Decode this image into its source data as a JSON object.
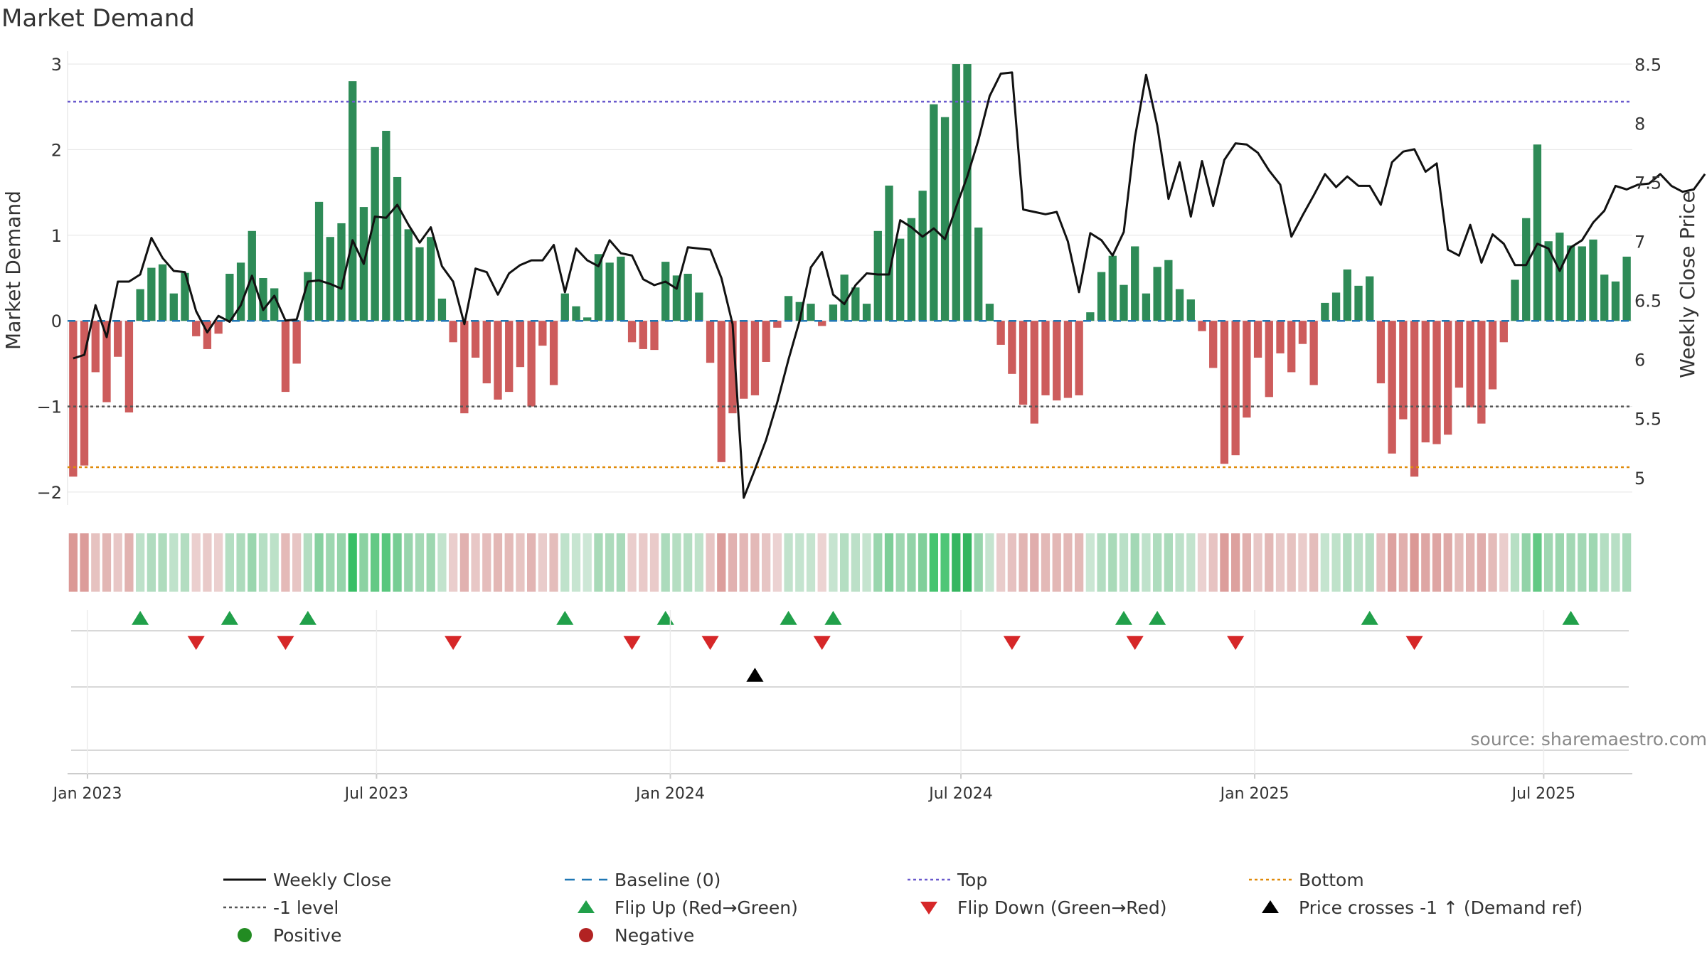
{
  "chart_data": {
    "type": "bar",
    "title": "Market Demand",
    "ylabel": "Market Demand",
    "y2label": "Weekly Close Price",
    "ylim": [
      -2.15,
      3.15
    ],
    "y2lim": [
      4.77,
      8.61
    ],
    "yticks": [
      -2,
      -1,
      0,
      1,
      2,
      3
    ],
    "y2ticks": [
      5,
      5.5,
      6,
      6.5,
      7,
      7.5,
      8,
      8.5
    ],
    "x_start": "2022-12-23",
    "week_step_days": 7,
    "xticks": [
      {
        "label": "Jan 2023",
        "date": "2023-01-01"
      },
      {
        "label": "Jul 2023",
        "date": "2023-07-01"
      },
      {
        "label": "Jan 2024",
        "date": "2024-01-01"
      },
      {
        "label": "Jul 2024",
        "date": "2024-07-01"
      },
      {
        "label": "Jan 2025",
        "date": "2025-01-01"
      },
      {
        "label": "Jul 2025",
        "date": "2025-07-01"
      }
    ],
    "top_level": 2.56,
    "bottom_level": -1.71,
    "minus_one_level": -1,
    "baseline": 0,
    "series": [
      {
        "name": "Market Demand",
        "values": [
          -1.82,
          -1.69,
          -0.6,
          -0.95,
          -0.42,
          -1.07,
          0.37,
          0.62,
          0.66,
          0.32,
          0.56,
          -0.18,
          -0.33,
          -0.15,
          0.55,
          0.68,
          1.05,
          0.5,
          0.38,
          -0.83,
          -0.5,
          0.57,
          1.39,
          0.98,
          1.14,
          2.8,
          1.33,
          2.03,
          2.22,
          1.68,
          1.07,
          0.86,
          0.98,
          0.26,
          -0.25,
          -1.08,
          -0.43,
          -0.73,
          -0.92,
          -0.83,
          -0.54,
          -1.0,
          -0.29,
          -0.75,
          0.32,
          0.17,
          0.04,
          0.78,
          0.68,
          0.75,
          -0.25,
          -0.33,
          -0.34,
          0.69,
          0.53,
          0.55,
          0.33,
          -0.49,
          -1.65,
          -1.08,
          -0.91,
          -0.87,
          -0.48,
          -0.08,
          0.29,
          0.22,
          0.2,
          -0.06,
          0.19,
          0.54,
          0.39,
          0.2,
          1.05,
          1.58,
          0.96,
          1.2,
          1.52,
          2.53,
          2.38,
          3.0,
          3.0,
          1.09,
          0.2,
          -0.28,
          -0.62,
          -0.98,
          -1.2,
          -0.87,
          -0.93,
          -0.9,
          -0.87,
          0.1,
          0.57,
          0.76,
          0.42,
          0.87,
          0.32,
          0.63,
          0.71,
          0.37,
          0.25,
          -0.12,
          -0.55,
          -1.67,
          -1.57,
          -1.13,
          -0.43,
          -0.89,
          -0.38,
          -0.6,
          -0.27,
          -0.75,
          0.21,
          0.33,
          0.6,
          0.41,
          0.52,
          -0.73,
          -1.55,
          -1.15,
          -1.82,
          -1.42,
          -1.44,
          -1.33,
          -0.78,
          -1.01,
          -1.2,
          -0.8,
          -0.25,
          0.48,
          1.2,
          2.06,
          0.93,
          1.03,
          0.88,
          0.87,
          0.95,
          0.54,
          0.46,
          0.75
        ]
      },
      {
        "name": "Weekly Close",
        "values": [
          6.01,
          6.04,
          6.46,
          6.19,
          6.66,
          6.66,
          6.72,
          7.03,
          6.86,
          6.75,
          6.74,
          6.41,
          6.23,
          6.37,
          6.32,
          6.46,
          6.71,
          6.42,
          6.54,
          6.33,
          6.34,
          6.66,
          6.67,
          6.64,
          6.6,
          7.01,
          6.81,
          7.21,
          7.2,
          7.31,
          7.14,
          6.99,
          7.12,
          6.79,
          6.66,
          6.3,
          6.77,
          6.74,
          6.55,
          6.73,
          6.8,
          6.84,
          6.84,
          6.97,
          6.57,
          6.94,
          6.84,
          6.79,
          7.01,
          6.9,
          6.88,
          6.68,
          6.63,
          6.66,
          6.6,
          6.95,
          6.94,
          6.93,
          6.69,
          6.3,
          4.83,
          5.07,
          5.32,
          5.64,
          6.0,
          6.33,
          6.78,
          6.91,
          6.55,
          6.47,
          6.63,
          6.73,
          6.72,
          6.72,
          7.18,
          7.12,
          7.04,
          7.11,
          7.02,
          7.29,
          7.55,
          7.86,
          8.23,
          8.42,
          8.43,
          7.27,
          7.25,
          7.23,
          7.25,
          7.0,
          6.57,
          7.07,
          7.01,
          6.88,
          7.08,
          7.88,
          8.41,
          7.98,
          7.36,
          7.67,
          7.21,
          7.68,
          7.3,
          7.69,
          7.83,
          7.82,
          7.75,
          7.6,
          7.48,
          7.04,
          7.22,
          7.39,
          7.57,
          7.46,
          7.55,
          7.47,
          7.47,
          7.31,
          7.67,
          7.76,
          7.78,
          7.59,
          7.66,
          6.93,
          6.88,
          7.14,
          6.82,
          7.06,
          6.98,
          6.8,
          6.8,
          6.98,
          6.94,
          6.75,
          6.95,
          7.01,
          7.16,
          7.26,
          7.47,
          7.44,
          7.48,
          7.49,
          7.57,
          7.47,
          7.42,
          7.44,
          7.57
        ]
      },
      {
        "name": "Baseline (0)"
      },
      {
        "name": "Top"
      },
      {
        "name": "Bottom"
      },
      {
        "name": "-1 level"
      }
    ],
    "flip_up_weeks": [
      6,
      14,
      21,
      44,
      53,
      64,
      68,
      94,
      97,
      116,
      134
    ],
    "flip_down_weeks": [
      11,
      19,
      34,
      50,
      57,
      67,
      84,
      95,
      104,
      120
    ],
    "price_cross_weeks": [
      61
    ],
    "legend": [
      {
        "label": "Weekly Close",
        "marker": "line",
        "color": "#111111"
      },
      {
        "label": "Baseline (0)",
        "marker": "dash",
        "color": "#1f77b4"
      },
      {
        "label": "Top",
        "marker": "dot",
        "color": "#6a5acd"
      },
      {
        "label": "Bottom",
        "marker": "dot",
        "color": "#e08a0a"
      },
      {
        "label": "-1 level",
        "marker": "dot",
        "color": "#555555"
      },
      {
        "label": "Flip Up (Red→Green)",
        "marker": "tri-up",
        "color": "#21a04a"
      },
      {
        "label": "Flip Down (Green→Red)",
        "marker": "tri-down",
        "color": "#d62728"
      },
      {
        "label": "Price crosses -1 ↑ (Demand ref)",
        "marker": "tri-up",
        "color": "#000000"
      },
      {
        "label": "Positive",
        "marker": "circle",
        "color": "#228b22"
      },
      {
        "label": "Negative",
        "marker": "circle",
        "color": "#b22222"
      }
    ],
    "source": "source: sharemaestro.com"
  },
  "colors": {
    "positive": "#2e8b57",
    "negative": "#cd5c5c",
    "price": "#111111",
    "baseline": "#1f77b4",
    "top": "#6a5acd",
    "bottom": "#e08a0a",
    "minus_one": "#555555",
    "flip_up": "#21a04a",
    "flip_down": "#d62728",
    "cross": "#000000",
    "grid": "#e8e8e8",
    "axis": "#cccccc",
    "text": "#333333"
  }
}
